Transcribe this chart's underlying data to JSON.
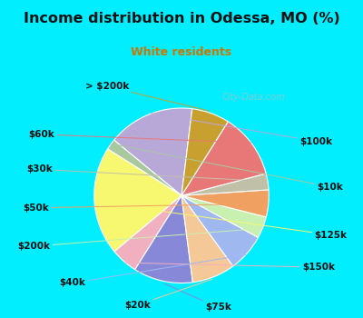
{
  "title": "Income distribution in Odessa, MO (%)",
  "subtitle": "White residents",
  "title_color": "#111111",
  "subtitle_color": "#cc7700",
  "fig_bg": "#00eeff",
  "chart_bg": "#dff5ed",
  "watermark": "City-Data.com",
  "labels": [
    "$100k",
    "$10k",
    "$125k",
    "$150k",
    "$75k",
    "$20k",
    "$40k",
    "$200k",
    "$50k",
    "$30k",
    "$60k",
    "> $200k"
  ],
  "values": [
    16,
    2,
    20,
    5,
    11,
    8,
    7,
    4,
    5,
    3,
    12,
    7
  ],
  "colors": [
    "#b8a8d8",
    "#a8c8a0",
    "#f8f870",
    "#f0b0c0",
    "#8888d8",
    "#f5c898",
    "#a0b8f0",
    "#c8f0b0",
    "#f0a060",
    "#c0c0a8",
    "#e87878",
    "#c8a030"
  ],
  "startangle": 83,
  "label_fontsize": 7.5,
  "label_color": "#111111"
}
